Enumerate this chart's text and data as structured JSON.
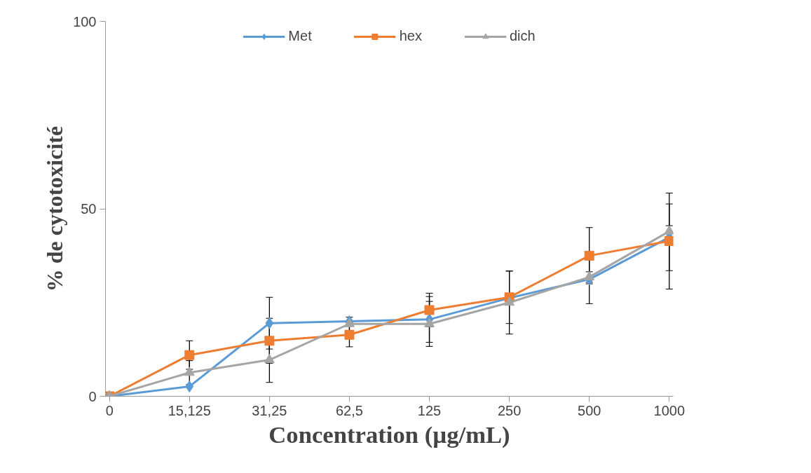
{
  "chart_data": {
    "type": "line",
    "xlabel": "Concentration (µg/mL)",
    "ylabel": "% de cytotoxicité",
    "categories": [
      "0",
      "15,125",
      "31,25",
      "62,5",
      "125",
      "250",
      "500",
      "1000"
    ],
    "ylim": [
      0,
      100
    ],
    "yticks": [
      0,
      50,
      100
    ],
    "grid": false,
    "legend": "top",
    "line_style": "solid",
    "series": [
      {
        "name": "Met",
        "color": "#5b9bd5",
        "marker": "diamond",
        "values": [
          0,
          2.6,
          19.5,
          20,
          20.5,
          26.2,
          31.2,
          42.4
        ],
        "errors": [
          null,
          null,
          6.9,
          null,
          6.1,
          null,
          6.5,
          8.9
        ]
      },
      {
        "name": "hex",
        "color": "#ed7d31",
        "marker": "square",
        "values": [
          0,
          11,
          14.8,
          16.4,
          23,
          26.4,
          37.5,
          41.4
        ],
        "errors": [
          null,
          3.8,
          6,
          3.2,
          4.5,
          7,
          7.5,
          12.8
        ]
      },
      {
        "name": "dich",
        "color": "#a5a5a5",
        "marker": "triangle",
        "values": [
          0,
          6.3,
          9.7,
          19.3,
          19.3,
          25,
          31.8,
          44
        ],
        "errors": [
          null,
          3.2,
          6,
          1.8,
          6,
          8.4,
          1.4,
          1.5
        ]
      }
    ]
  }
}
